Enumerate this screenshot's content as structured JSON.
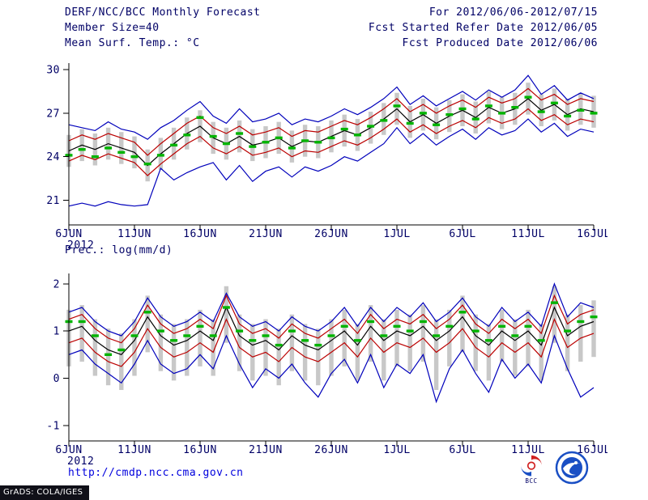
{
  "header": {
    "title": "DERF/NCC/BCC Monthly Forecast",
    "member_size": "Member Size=40",
    "panel1_label": "Mean Surf. Temp.: °C",
    "for_range": "For 2012/06/06-2012/07/15",
    "fcst_started": "Fcst Started Refer Date 2012/06/05",
    "fcst_produced": "Fcst Produced Date 2012/06/06"
  },
  "panel2_label": "Prec.: log(mm/d)",
  "footer": {
    "url": "http://cmdp.ncc.cma.gov.cn",
    "grads_credit": "GrADS: COLA/IGES",
    "bcc_logo_text": "BCC"
  },
  "colors": {
    "text": "#000066",
    "axis": "#000000",
    "line_blue": "#0000bb",
    "line_red": "#bb0000",
    "line_black": "#000000",
    "obs_green": "#00b400",
    "spread_gray": "#c8c8c8",
    "url_blue": "#0000dd"
  },
  "chart_data": [
    {
      "type": "line",
      "title": "Mean Surf. Temp.: °C",
      "ylabel": "°C",
      "xlabel": "",
      "grid": false,
      "legend_position": "none",
      "xlim": [
        0,
        40
      ],
      "ylim": [
        19.3,
        30.45
      ],
      "yticks": [
        21,
        24,
        27,
        30
      ],
      "x_tick_positions": [
        0,
        5,
        10,
        15,
        20,
        25,
        30,
        35,
        40
      ],
      "x_tick_labels": [
        "6JUN",
        "11JUN",
        "16JUN",
        "21JUN",
        "26JUN",
        "1JUL",
        "6JUL",
        "11JUL",
        "16JUL"
      ],
      "x_year_label": "2012",
      "series": [
        {
          "name": "ensemble-max",
          "color": "#0000bb",
          "style": "line",
          "values": [
            26.2,
            26.0,
            25.8,
            26.4,
            25.9,
            25.7,
            25.2,
            26.0,
            26.5,
            27.2,
            27.8,
            26.8,
            26.3,
            27.3,
            26.4,
            26.6,
            27.0,
            26.2,
            26.6,
            26.4,
            26.8,
            27.3,
            26.9,
            27.4,
            28.0,
            28.8,
            27.6,
            28.2,
            27.5,
            28.0,
            28.5,
            27.9,
            28.6,
            28.1,
            28.6,
            29.6,
            28.3,
            28.9,
            27.9,
            28.4,
            28.0
          ]
        },
        {
          "name": "upper-band",
          "color": "#bb0000",
          "style": "line",
          "values": [
            25.1,
            25.5,
            25.2,
            25.6,
            25.3,
            25.0,
            24.1,
            24.9,
            25.6,
            26.3,
            26.8,
            26.0,
            25.6,
            26.1,
            25.5,
            25.7,
            26.0,
            25.4,
            25.8,
            25.7,
            26.1,
            26.5,
            26.2,
            26.7,
            27.3,
            28.0,
            27.1,
            27.6,
            27.0,
            27.5,
            27.9,
            27.4,
            28.1,
            27.7,
            28.0,
            28.7,
            27.9,
            28.3,
            27.6,
            28.0,
            27.8
          ]
        },
        {
          "name": "ensemble-mean",
          "color": "#000000",
          "style": "line",
          "values": [
            24.4,
            24.8,
            24.5,
            24.9,
            24.6,
            24.3,
            23.4,
            24.2,
            24.9,
            25.6,
            26.1,
            25.3,
            24.9,
            25.4,
            24.8,
            25.0,
            25.3,
            24.7,
            25.1,
            25.0,
            25.4,
            25.8,
            25.5,
            26.0,
            26.6,
            27.3,
            26.4,
            26.9,
            26.3,
            26.8,
            27.2,
            26.7,
            27.4,
            27.0,
            27.3,
            28.0,
            27.2,
            27.6,
            26.9,
            27.3,
            27.1
          ]
        },
        {
          "name": "lower-band",
          "color": "#bb0000",
          "style": "line",
          "values": [
            23.7,
            24.1,
            23.8,
            24.2,
            23.9,
            23.6,
            22.7,
            23.5,
            24.2,
            24.9,
            25.4,
            24.6,
            24.2,
            24.7,
            24.1,
            24.3,
            24.6,
            24.0,
            24.4,
            24.3,
            24.7,
            25.1,
            24.8,
            25.3,
            25.9,
            26.6,
            25.7,
            26.2,
            25.6,
            26.1,
            26.5,
            26.0,
            26.7,
            26.3,
            26.6,
            27.3,
            26.5,
            26.9,
            26.2,
            26.6,
            26.4
          ]
        },
        {
          "name": "ensemble-min",
          "color": "#0000bb",
          "style": "line",
          "values": [
            20.6,
            20.8,
            20.6,
            20.9,
            20.7,
            20.6,
            20.7,
            23.2,
            22.4,
            22.9,
            23.3,
            23.6,
            22.4,
            23.4,
            22.3,
            23.0,
            23.3,
            22.6,
            23.3,
            23.0,
            23.4,
            24.0,
            23.7,
            24.3,
            24.9,
            26.0,
            24.9,
            25.6,
            24.8,
            25.4,
            25.9,
            25.2,
            26.0,
            25.5,
            25.8,
            26.6,
            25.7,
            26.3,
            25.4,
            25.9,
            25.7
          ]
        },
        {
          "name": "obs-climatology",
          "color": "#00b400",
          "style": "dashes",
          "values": [
            24.1,
            24.5,
            24.0,
            24.6,
            24.3,
            24.0,
            23.5,
            24.1,
            24.8,
            25.5,
            26.7,
            25.4,
            24.9,
            25.6,
            24.7,
            25.0,
            25.3,
            24.6,
            25.1,
            25.0,
            25.3,
            25.9,
            25.5,
            26.1,
            26.5,
            27.5,
            26.3,
            27.0,
            26.2,
            26.9,
            27.3,
            26.6,
            27.5,
            27.0,
            27.4,
            28.1,
            27.1,
            27.7,
            26.8,
            27.2,
            27.0
          ]
        }
      ],
      "spread_bars": {
        "color": "#c8c8c8",
        "high": [
          25.5,
          25.9,
          25.6,
          26.0,
          25.7,
          25.4,
          24.5,
          25.3,
          26.0,
          26.7,
          27.2,
          26.4,
          26.0,
          26.5,
          25.9,
          26.1,
          26.4,
          25.8,
          26.2,
          26.1,
          26.5,
          26.9,
          26.6,
          27.1,
          27.7,
          28.4,
          27.5,
          28.0,
          27.4,
          27.9,
          28.3,
          27.8,
          28.5,
          28.1,
          28.4,
          29.1,
          28.3,
          28.7,
          28.0,
          28.4,
          28.2
        ],
        "low": [
          23.3,
          23.7,
          23.4,
          23.8,
          23.5,
          23.2,
          22.3,
          23.1,
          23.8,
          24.5,
          25.0,
          24.2,
          23.8,
          24.3,
          23.7,
          23.9,
          24.2,
          23.6,
          24.0,
          23.9,
          24.3,
          24.7,
          24.4,
          24.9,
          25.5,
          26.2,
          25.3,
          25.8,
          25.2,
          25.7,
          26.1,
          25.6,
          26.3,
          25.9,
          26.2,
          26.9,
          26.1,
          26.5,
          25.8,
          26.2,
          26.0
        ]
      }
    },
    {
      "type": "line",
      "title": "Prec.: log(mm/d)",
      "ylabel": "log(mm/d)",
      "xlabel": "",
      "grid": false,
      "legend_position": "none",
      "xlim": [
        0,
        40
      ],
      "ylim": [
        -1.33,
        2.22
      ],
      "yticks": [
        -1,
        0,
        1,
        2
      ],
      "x_tick_positions": [
        0,
        5,
        10,
        15,
        20,
        25,
        30,
        35,
        40
      ],
      "x_tick_labels": [
        "6JUN",
        "11JUN",
        "16JUN",
        "21JUN",
        "26JUN",
        "1JUL",
        "6JUL",
        "11JUL",
        "16JUL"
      ],
      "x_year_label": "2012",
      "series": [
        {
          "name": "ensemble-max",
          "color": "#0000bb",
          "style": "line",
          "values": [
            1.4,
            1.5,
            1.2,
            1.0,
            0.9,
            1.2,
            1.7,
            1.3,
            1.1,
            1.2,
            1.4,
            1.2,
            1.8,
            1.3,
            1.1,
            1.2,
            1.0,
            1.3,
            1.1,
            1.0,
            1.2,
            1.5,
            1.1,
            1.5,
            1.2,
            1.5,
            1.3,
            1.6,
            1.2,
            1.4,
            1.7,
            1.3,
            1.1,
            1.5,
            1.2,
            1.4,
            1.1,
            2.0,
            1.3,
            1.6,
            1.5
          ]
        },
        {
          "name": "upper-band",
          "color": "#bb0000",
          "style": "line",
          "values": [
            1.25,
            1.35,
            1.05,
            0.85,
            0.75,
            1.05,
            1.55,
            1.15,
            0.95,
            1.05,
            1.25,
            1.05,
            1.75,
            1.15,
            0.95,
            1.05,
            0.85,
            1.15,
            0.95,
            0.85,
            1.05,
            1.25,
            0.95,
            1.35,
            1.05,
            1.25,
            1.15,
            1.35,
            1.05,
            1.25,
            1.55,
            1.15,
            0.95,
            1.25,
            1.05,
            1.25,
            0.95,
            1.75,
            1.15,
            1.35,
            1.45
          ]
        },
        {
          "name": "ensemble-mean",
          "color": "#000000",
          "style": "line",
          "values": [
            1.0,
            1.1,
            0.8,
            0.6,
            0.5,
            0.8,
            1.3,
            0.9,
            0.7,
            0.8,
            1.0,
            0.8,
            1.5,
            0.9,
            0.7,
            0.8,
            0.6,
            0.9,
            0.7,
            0.6,
            0.8,
            1.0,
            0.7,
            1.1,
            0.8,
            1.0,
            0.9,
            1.1,
            0.8,
            1.0,
            1.3,
            0.9,
            0.7,
            1.0,
            0.8,
            1.0,
            0.7,
            1.5,
            0.9,
            1.1,
            1.2
          ]
        },
        {
          "name": "lower-band",
          "color": "#bb0000",
          "style": "line",
          "values": [
            0.75,
            0.85,
            0.55,
            0.35,
            0.25,
            0.55,
            1.05,
            0.65,
            0.45,
            0.55,
            0.75,
            0.55,
            1.25,
            0.65,
            0.45,
            0.55,
            0.35,
            0.65,
            0.45,
            0.35,
            0.55,
            0.75,
            0.45,
            0.85,
            0.55,
            0.75,
            0.65,
            0.85,
            0.55,
            0.75,
            1.05,
            0.65,
            0.45,
            0.75,
            0.55,
            0.75,
            0.45,
            1.25,
            0.65,
            0.85,
            0.95
          ]
        },
        {
          "name": "ensemble-min",
          "color": "#0000bb",
          "style": "line",
          "values": [
            0.5,
            0.6,
            0.3,
            0.1,
            -0.1,
            0.3,
            0.8,
            0.3,
            0.1,
            0.2,
            0.5,
            0.2,
            0.9,
            0.3,
            -0.2,
            0.2,
            0.0,
            0.3,
            -0.1,
            -0.4,
            0.1,
            0.4,
            -0.1,
            0.5,
            -0.2,
            0.3,
            0.1,
            0.5,
            -0.5,
            0.2,
            0.6,
            0.1,
            -0.3,
            0.4,
            0.0,
            0.3,
            -0.1,
            0.9,
            0.2,
            -0.4,
            -0.2
          ]
        },
        {
          "name": "obs-climatology",
          "color": "#00b400",
          "style": "dashes",
          "values": [
            1.2,
            1.2,
            0.9,
            0.5,
            0.6,
            0.9,
            1.4,
            1.0,
            0.8,
            0.9,
            1.1,
            0.9,
            1.5,
            1.0,
            0.8,
            0.9,
            0.7,
            1.0,
            0.8,
            0.7,
            0.9,
            1.1,
            0.8,
            1.2,
            0.9,
            1.1,
            1.0,
            1.2,
            0.9,
            1.1,
            1.4,
            1.0,
            0.8,
            1.1,
            0.9,
            1.1,
            0.8,
            1.6,
            1.0,
            1.2,
            1.3
          ]
        }
      ],
      "spread_bars": {
        "color": "#c8c8c8",
        "high": [
          1.45,
          1.55,
          1.25,
          1.05,
          0.95,
          1.25,
          1.75,
          1.35,
          1.15,
          1.25,
          1.45,
          1.25,
          1.95,
          1.35,
          1.15,
          1.25,
          1.05,
          1.35,
          1.15,
          1.05,
          1.25,
          1.45,
          1.15,
          1.55,
          1.25,
          1.45,
          1.35,
          1.55,
          1.25,
          1.45,
          1.75,
          1.35,
          1.15,
          1.45,
          1.25,
          1.45,
          1.15,
          1.95,
          1.35,
          1.55,
          1.65
        ],
        "low": [
          0.25,
          0.35,
          0.05,
          -0.15,
          -0.25,
          0.05,
          0.55,
          0.15,
          -0.05,
          0.05,
          0.25,
          0.05,
          0.75,
          0.15,
          -0.05,
          0.05,
          -0.15,
          0.15,
          -0.05,
          -0.15,
          0.05,
          0.25,
          -0.05,
          0.35,
          -0.05,
          0.25,
          0.15,
          0.35,
          -0.25,
          0.25,
          0.55,
          0.15,
          -0.05,
          0.35,
          0.05,
          0.25,
          -0.05,
          0.75,
          0.15,
          0.35,
          0.45
        ]
      }
    }
  ]
}
